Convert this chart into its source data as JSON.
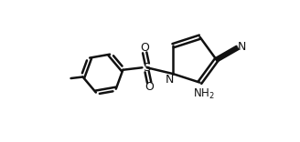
{
  "background_color": "#ffffff",
  "line_color": "#111111",
  "line_width": 1.8,
  "text_color": "#111111",
  "fig_width": 3.28,
  "fig_height": 1.56,
  "dpi": 100,
  "xlim": [
    0,
    9
  ],
  "ylim": [
    0,
    5
  ]
}
